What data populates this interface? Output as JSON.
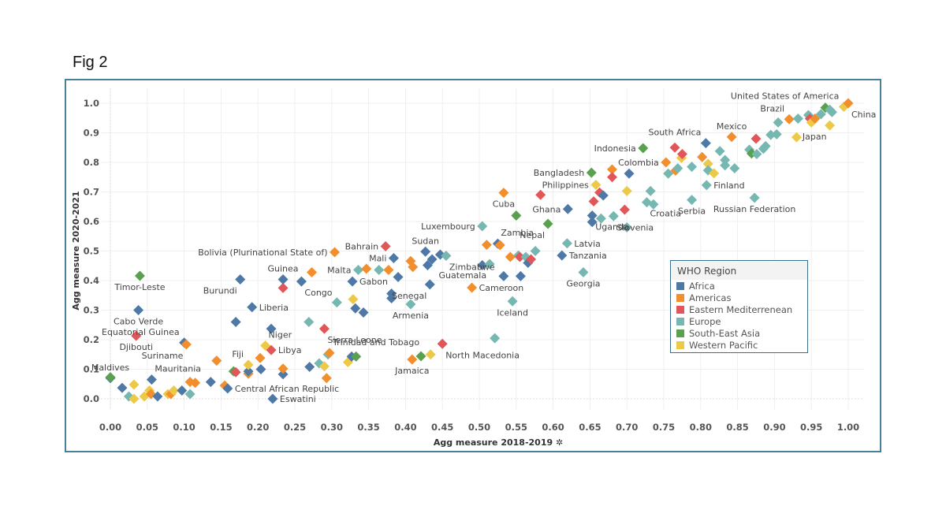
{
  "figure_label": "Fig 2",
  "chart_data": {
    "type": "scatter",
    "title": "",
    "xlabel": "Agg measure 2018-2019",
    "xlabel_suffix": "✲",
    "ylabel": "Agg measure 2020-2021",
    "xlim": [
      0.0,
      1.0
    ],
    "ylim": [
      0.0,
      1.0
    ],
    "x_ticks": [
      "0.00",
      "0.05",
      "0.10",
      "0.15",
      "0.20",
      "0.25",
      "0.30",
      "0.35",
      "0.40",
      "0.45",
      "0.50",
      "0.55",
      "0.60",
      "0.65",
      "0.70",
      "0.75",
      "0.80",
      "0.85",
      "0.90",
      "0.95",
      "1.00"
    ],
    "y_ticks": [
      "0.0",
      "0.1",
      "0.2",
      "0.3",
      "0.4",
      "0.5",
      "0.6",
      "0.7",
      "0.8",
      "0.9",
      "1.0"
    ],
    "grid": true,
    "legend": {
      "title": "WHO Region",
      "placement": "right",
      "entries": [
        {
          "name": "Africa",
          "color": "#4e79a7"
        },
        {
          "name": "Americas",
          "color": "#f28e2b"
        },
        {
          "name": "Eastern Mediterrenean",
          "color": "#e15759"
        },
        {
          "name": "Europe",
          "color": "#76b7b2"
        },
        {
          "name": "South-East Asia",
          "color": "#59a14f"
        },
        {
          "name": "Western Pacific",
          "color": "#edc948"
        }
      ]
    },
    "points": [
      {
        "x": 0.0,
        "y": 0.07,
        "r": "Africa",
        "label": "Maldives",
        "lp": "above"
      },
      {
        "x": 0.0,
        "y": 0.073,
        "r": "South-East Asia"
      },
      {
        "x": 0.016,
        "y": 0.037,
        "r": "Africa"
      },
      {
        "x": 0.025,
        "y": 0.008,
        "r": "Europe"
      },
      {
        "x": 0.032,
        "y": 0.0,
        "r": "Western Pacific"
      },
      {
        "x": 0.032,
        "y": 0.048,
        "r": "Western Pacific"
      },
      {
        "x": 0.035,
        "y": 0.213,
        "r": "Eastern Mediterrenean",
        "label": "Djibouti",
        "lp": "below"
      },
      {
        "x": 0.038,
        "y": 0.3,
        "r": "Africa",
        "label": "Cabo Verde",
        "lp": "below"
      },
      {
        "x": 0.04,
        "y": 0.416,
        "r": "South-East Asia",
        "label": "Timor-Leste",
        "lp": "below"
      },
      {
        "x": 0.046,
        "y": 0.008,
        "r": "Western Pacific"
      },
      {
        "x": 0.053,
        "y": 0.028,
        "r": "Western Pacific"
      },
      {
        "x": 0.055,
        "y": 0.016,
        "r": "Americas"
      },
      {
        "x": 0.056,
        "y": 0.065,
        "r": "Africa",
        "label": "Mauritania",
        "lp": "aboveright"
      },
      {
        "x": 0.064,
        "y": 0.008,
        "r": "Africa"
      },
      {
        "x": 0.078,
        "y": 0.016,
        "r": "Western Pacific"
      },
      {
        "x": 0.082,
        "y": 0.016,
        "r": "Americas"
      },
      {
        "x": 0.086,
        "y": 0.028,
        "r": "Western Pacific"
      },
      {
        "x": 0.097,
        "y": 0.028,
        "r": "Africa"
      },
      {
        "x": 0.1,
        "y": 0.19,
        "r": "Africa",
        "label": "Equatorial Guinea",
        "lp": "aboveleft"
      },
      {
        "x": 0.103,
        "y": 0.184,
        "r": "Americas",
        "label": "Suriname",
        "lp": "belowleft"
      },
      {
        "x": 0.108,
        "y": 0.016,
        "r": "Europe"
      },
      {
        "x": 0.108,
        "y": 0.057,
        "r": "Americas"
      },
      {
        "x": 0.115,
        "y": 0.054,
        "r": "Americas"
      },
      {
        "x": 0.136,
        "y": 0.057,
        "r": "Africa"
      },
      {
        "x": 0.144,
        "y": 0.129,
        "r": "Americas"
      },
      {
        "x": 0.155,
        "y": 0.045,
        "r": "Americas"
      },
      {
        "x": 0.159,
        "y": 0.035,
        "r": "Africa",
        "label": "Central African Republic",
        "lp": "right"
      },
      {
        "x": 0.167,
        "y": 0.093,
        "r": "South-East Asia"
      },
      {
        "x": 0.17,
        "y": 0.09,
        "r": "Eastern Mediterrenean"
      },
      {
        "x": 0.17,
        "y": 0.26,
        "r": "Africa"
      },
      {
        "x": 0.176,
        "y": 0.404,
        "r": "Africa",
        "label": "Burundi",
        "lp": "belowleft"
      },
      {
        "x": 0.187,
        "y": 0.085,
        "r": "Americas"
      },
      {
        "x": 0.187,
        "y": 0.093,
        "r": "Africa"
      },
      {
        "x": 0.187,
        "y": 0.115,
        "r": "Western Pacific",
        "label": "Fiji",
        "lp": "aboveleft"
      },
      {
        "x": 0.192,
        "y": 0.31,
        "r": "Africa",
        "label": "Liberia",
        "lp": "right"
      },
      {
        "x": 0.203,
        "y": 0.138,
        "r": "Americas"
      },
      {
        "x": 0.204,
        "y": 0.1,
        "r": "Africa"
      },
      {
        "x": 0.21,
        "y": 0.18,
        "r": "Western Pacific",
        "label": "Niger",
        "lp": "aboveright"
      },
      {
        "x": 0.218,
        "y": 0.237,
        "r": "Africa"
      },
      {
        "x": 0.218,
        "y": 0.165,
        "r": "Eastern Mediterrenean",
        "label": "Libya",
        "lp": "right"
      },
      {
        "x": 0.22,
        "y": 0.0,
        "r": "Africa",
        "label": "Eswatini",
        "lp": "right"
      },
      {
        "x": 0.234,
        "y": 0.083,
        "r": "Africa"
      },
      {
        "x": 0.234,
        "y": 0.102,
        "r": "Americas"
      },
      {
        "x": 0.234,
        "y": 0.375,
        "r": "Eastern Mediterrenean"
      },
      {
        "x": 0.234,
        "y": 0.404,
        "r": "Africa",
        "label": "Guinea",
        "lp": "above"
      },
      {
        "x": 0.259,
        "y": 0.397,
        "r": "Africa",
        "label": "Congo",
        "lp": "belowright"
      },
      {
        "x": 0.269,
        "y": 0.26,
        "r": "Europe"
      },
      {
        "x": 0.27,
        "y": 0.108,
        "r": "Africa"
      },
      {
        "x": 0.273,
        "y": 0.428,
        "r": "Americas"
      },
      {
        "x": 0.283,
        "y": 0.12,
        "r": "Europe"
      },
      {
        "x": 0.29,
        "y": 0.11,
        "r": "Western Pacific"
      },
      {
        "x": 0.29,
        "y": 0.237,
        "r": "Eastern Mediterrenean",
        "label": "Sierra Leone",
        "lp": "belowright"
      },
      {
        "x": 0.293,
        "y": 0.07,
        "r": "Americas"
      },
      {
        "x": 0.295,
        "y": 0.15,
        "r": "Europe"
      },
      {
        "x": 0.297,
        "y": 0.155,
        "r": "Americas",
        "label": "Trinidad and Tobago",
        "lp": "aboveright"
      },
      {
        "x": 0.304,
        "y": 0.496,
        "r": "Americas",
        "label": "Bolivia (Plurinational State of)",
        "lp": "left"
      },
      {
        "x": 0.307,
        "y": 0.326,
        "r": "Europe"
      },
      {
        "x": 0.322,
        "y": 0.124,
        "r": "Western Pacific"
      },
      {
        "x": 0.327,
        "y": 0.143,
        "r": "Africa"
      },
      {
        "x": 0.333,
        "y": 0.143,
        "r": "South-East Asia"
      },
      {
        "x": 0.328,
        "y": 0.397,
        "r": "Africa",
        "label": "Gabon",
        "lp": "right"
      },
      {
        "x": 0.329,
        "y": 0.337,
        "r": "Western Pacific"
      },
      {
        "x": 0.332,
        "y": 0.306,
        "r": "Africa"
      },
      {
        "x": 0.336,
        "y": 0.436,
        "r": "Europe",
        "label": "Malta",
        "lp": "left"
      },
      {
        "x": 0.343,
        "y": 0.292,
        "r": "Africa"
      },
      {
        "x": 0.347,
        "y": 0.44,
        "r": "Americas"
      },
      {
        "x": 0.364,
        "y": 0.436,
        "r": "Europe"
      },
      {
        "x": 0.373,
        "y": 0.516,
        "r": "Eastern Mediterrenean",
        "label": "Bahrain",
        "lp": "left"
      },
      {
        "x": 0.377,
        "y": 0.436,
        "r": "Americas"
      },
      {
        "x": 0.381,
        "y": 0.356,
        "r": "Africa"
      },
      {
        "x": 0.381,
        "y": 0.34,
        "r": "Africa"
      },
      {
        "x": 0.384,
        "y": 0.476,
        "r": "Africa",
        "label": "Mali",
        "lp": "left"
      },
      {
        "x": 0.39,
        "y": 0.412,
        "r": "Africa"
      },
      {
        "x": 0.407,
        "y": 0.32,
        "r": "Europe",
        "label": "Armenia",
        "lp": "below"
      },
      {
        "x": 0.407,
        "y": 0.466,
        "r": "Americas"
      },
      {
        "x": 0.41,
        "y": 0.446,
        "r": "Americas"
      },
      {
        "x": 0.409,
        "y": 0.133,
        "r": "Americas",
        "label": "Jamaica",
        "lp": "below"
      },
      {
        "x": 0.421,
        "y": 0.144,
        "r": "South-East Asia"
      },
      {
        "x": 0.427,
        "y": 0.498,
        "r": "Africa",
        "label": "Sudan",
        "lp": "above"
      },
      {
        "x": 0.43,
        "y": 0.452,
        "r": "Africa"
      },
      {
        "x": 0.433,
        "y": 0.387,
        "r": "Africa",
        "label": "Senegal",
        "lp": "belowleft"
      },
      {
        "x": 0.436,
        "y": 0.472,
        "r": "Africa"
      },
      {
        "x": 0.434,
        "y": 0.15,
        "r": "Western Pacific"
      },
      {
        "x": 0.447,
        "y": 0.488,
        "r": "Africa"
      },
      {
        "x": 0.45,
        "y": 0.186,
        "r": "Eastern Mediterrenean",
        "label": "North Macedonia",
        "lp": "belowright"
      },
      {
        "x": 0.455,
        "y": 0.484,
        "r": "Europe",
        "label": "Zimbabwe",
        "lp": "belowright"
      },
      {
        "x": 0.49,
        "y": 0.376,
        "r": "Americas",
        "label": "Cameroon",
        "lp": "right"
      },
      {
        "x": 0.504,
        "y": 0.584,
        "r": "Europe",
        "label": "Luxembourg",
        "lp": "left"
      },
      {
        "x": 0.504,
        "y": 0.452,
        "r": "Africa"
      },
      {
        "x": 0.51,
        "y": 0.521,
        "r": "Americas"
      },
      {
        "x": 0.514,
        "y": 0.456,
        "r": "Europe",
        "label": "Guatemala",
        "lp": "belowleft"
      },
      {
        "x": 0.521,
        "y": 0.205,
        "r": "Europe"
      },
      {
        "x": 0.525,
        "y": 0.525,
        "r": "Africa",
        "label": "Zambia",
        "lp": "aboveright"
      },
      {
        "x": 0.528,
        "y": 0.52,
        "r": "Americas"
      },
      {
        "x": 0.533,
        "y": 0.415,
        "r": "Africa"
      },
      {
        "x": 0.533,
        "y": 0.697,
        "r": "Americas",
        "label": "Cuba",
        "lp": "below"
      },
      {
        "x": 0.542,
        "y": 0.48,
        "r": "Americas"
      },
      {
        "x": 0.545,
        "y": 0.33,
        "r": "Europe",
        "label": "Iceland",
        "lp": "below"
      },
      {
        "x": 0.55,
        "y": 0.62,
        "r": "South-East Asia"
      },
      {
        "x": 0.553,
        "y": 0.485,
        "r": "Europe"
      },
      {
        "x": 0.555,
        "y": 0.48,
        "r": "Eastern Mediterrenean"
      },
      {
        "x": 0.556,
        "y": 0.415,
        "r": "Africa"
      },
      {
        "x": 0.563,
        "y": 0.48,
        "r": "Europe"
      },
      {
        "x": 0.566,
        "y": 0.46,
        "r": "Africa"
      },
      {
        "x": 0.57,
        "y": 0.472,
        "r": "Eastern Mediterrenean"
      },
      {
        "x": 0.576,
        "y": 0.5,
        "r": "Europe"
      },
      {
        "x": 0.583,
        "y": 0.69,
        "r": "Eastern Mediterrenean"
      },
      {
        "x": 0.593,
        "y": 0.592,
        "r": "South-East Asia",
        "label": "Nepal",
        "lp": "belowleft"
      },
      {
        "x": 0.612,
        "y": 0.485,
        "r": "Africa",
        "label": "Tanzania",
        "lp": "right"
      },
      {
        "x": 0.619,
        "y": 0.526,
        "r": "Europe",
        "label": "Latvia",
        "lp": "right"
      },
      {
        "x": 0.62,
        "y": 0.642,
        "r": "Africa",
        "label": "Ghana",
        "lp": "left"
      },
      {
        "x": 0.641,
        "y": 0.428,
        "r": "Europe",
        "label": "Georgia",
        "lp": "below"
      },
      {
        "x": 0.652,
        "y": 0.765,
        "r": "South-East Asia",
        "label": "Bangladesh",
        "lp": "left"
      },
      {
        "x": 0.653,
        "y": 0.62,
        "r": "Africa",
        "label": "Uganda",
        "lp": "belowright"
      },
      {
        "x": 0.653,
        "y": 0.598,
        "r": "Africa"
      },
      {
        "x": 0.655,
        "y": 0.668,
        "r": "Eastern Mediterrenean"
      },
      {
        "x": 0.658,
        "y": 0.724,
        "r": "Western Pacific",
        "label": "Philippines",
        "lp": "left"
      },
      {
        "x": 0.663,
        "y": 0.698,
        "r": "Eastern Mediterrenean"
      },
      {
        "x": 0.665,
        "y": 0.61,
        "r": "Europe"
      },
      {
        "x": 0.668,
        "y": 0.688,
        "r": "Africa"
      },
      {
        "x": 0.68,
        "y": 0.776,
        "r": "Americas"
      },
      {
        "x": 0.68,
        "y": 0.75,
        "r": "Eastern Mediterrenean"
      },
      {
        "x": 0.682,
        "y": 0.618,
        "r": "Europe",
        "label": "Slovenia",
        "lp": "belowright"
      },
      {
        "x": 0.697,
        "y": 0.64,
        "r": "Eastern Mediterrenean"
      },
      {
        "x": 0.7,
        "y": 0.703,
        "r": "Western Pacific"
      },
      {
        "x": 0.7,
        "y": 0.58,
        "r": "Europe"
      },
      {
        "x": 0.703,
        "y": 0.762,
        "r": "Africa"
      },
      {
        "x": 0.722,
        "y": 0.848,
        "r": "South-East Asia",
        "label": "Indonesia",
        "lp": "left"
      },
      {
        "x": 0.727,
        "y": 0.665,
        "r": "Europe",
        "label": "Croatia",
        "lp": "belowright"
      },
      {
        "x": 0.732,
        "y": 0.703,
        "r": "Europe"
      },
      {
        "x": 0.736,
        "y": 0.658,
        "r": "Europe"
      },
      {
        "x": 0.753,
        "y": 0.8,
        "r": "Americas",
        "label": "Colombia",
        "lp": "left"
      },
      {
        "x": 0.756,
        "y": 0.762,
        "r": "Europe"
      },
      {
        "x": 0.765,
        "y": 0.85,
        "r": "Eastern Mediterrenean"
      },
      {
        "x": 0.766,
        "y": 0.772,
        "r": "Americas"
      },
      {
        "x": 0.769,
        "y": 0.78,
        "r": "Europe"
      },
      {
        "x": 0.774,
        "y": 0.815,
        "r": "Western Pacific"
      },
      {
        "x": 0.775,
        "y": 0.828,
        "r": "Eastern Mediterrenean"
      },
      {
        "x": 0.788,
        "y": 0.785,
        "r": "Europe"
      },
      {
        "x": 0.788,
        "y": 0.673,
        "r": "Europe",
        "label": "Serbia",
        "lp": "below"
      },
      {
        "x": 0.802,
        "y": 0.818,
        "r": "Americas"
      },
      {
        "x": 0.807,
        "y": 0.865,
        "r": "Africa",
        "label": "South Africa",
        "lp": "aboveleft"
      },
      {
        "x": 0.808,
        "y": 0.723,
        "r": "Europe",
        "label": "Finland",
        "lp": "right"
      },
      {
        "x": 0.81,
        "y": 0.795,
        "r": "Western Pacific"
      },
      {
        "x": 0.81,
        "y": 0.773,
        "r": "Europe"
      },
      {
        "x": 0.818,
        "y": 0.763,
        "r": "Western Pacific"
      },
      {
        "x": 0.826,
        "y": 0.838,
        "r": "Europe"
      },
      {
        "x": 0.833,
        "y": 0.808,
        "r": "Europe"
      },
      {
        "x": 0.833,
        "y": 0.79,
        "r": "Europe"
      },
      {
        "x": 0.842,
        "y": 0.886,
        "r": "Americas",
        "label": "Mexico",
        "lp": "above"
      },
      {
        "x": 0.846,
        "y": 0.78,
        "r": "Europe"
      },
      {
        "x": 0.866,
        "y": 0.843,
        "r": "Europe"
      },
      {
        "x": 0.869,
        "y": 0.83,
        "r": "South-East Asia"
      },
      {
        "x": 0.873,
        "y": 0.68,
        "r": "Europe",
        "label": "Russian Federation",
        "lp": "below"
      },
      {
        "x": 0.875,
        "y": 0.88,
        "r": "Eastern Mediterrenean"
      },
      {
        "x": 0.876,
        "y": 0.828,
        "r": "Europe"
      },
      {
        "x": 0.885,
        "y": 0.846,
        "r": "Europe"
      },
      {
        "x": 0.888,
        "y": 0.855,
        "r": "Europe"
      },
      {
        "x": 0.895,
        "y": 0.893,
        "r": "Europe"
      },
      {
        "x": 0.903,
        "y": 0.895,
        "r": "Europe"
      },
      {
        "x": 0.905,
        "y": 0.935,
        "r": "Europe"
      },
      {
        "x": 0.92,
        "y": 0.946,
        "r": "Americas",
        "label": "Brazil",
        "lp": "aboveleft"
      },
      {
        "x": 0.93,
        "y": 0.885,
        "r": "Western Pacific"
      },
      {
        "x": 0.932,
        "y": 0.948,
        "r": "Europe"
      },
      {
        "x": 0.946,
        "y": 0.96,
        "r": "Europe"
      },
      {
        "x": 0.948,
        "y": 0.948,
        "r": "Eastern Mediterrenean"
      },
      {
        "x": 0.95,
        "y": 0.935,
        "r": "Western Pacific"
      },
      {
        "x": 0.955,
        "y": 0.948,
        "r": "Americas"
      },
      {
        "x": 0.963,
        "y": 0.963,
        "r": "Europe"
      },
      {
        "x": 0.969,
        "y": 0.985,
        "r": "South-East Asia"
      },
      {
        "x": 0.975,
        "y": 0.978,
        "r": "Europe"
      },
      {
        "x": 0.978,
        "y": 0.97,
        "r": "Europe"
      },
      {
        "x": 0.975,
        "y": 0.925,
        "r": "Western Pacific",
        "label": "Japan",
        "lp": "belowleft"
      },
      {
        "x": 0.994,
        "y": 0.988,
        "r": "Western Pacific",
        "label": "United States of America",
        "lp": "aboveleft"
      },
      {
        "x": 1.0,
        "y": 1.0,
        "r": "Americas",
        "label": "China",
        "lp": "belowright"
      }
    ]
  }
}
